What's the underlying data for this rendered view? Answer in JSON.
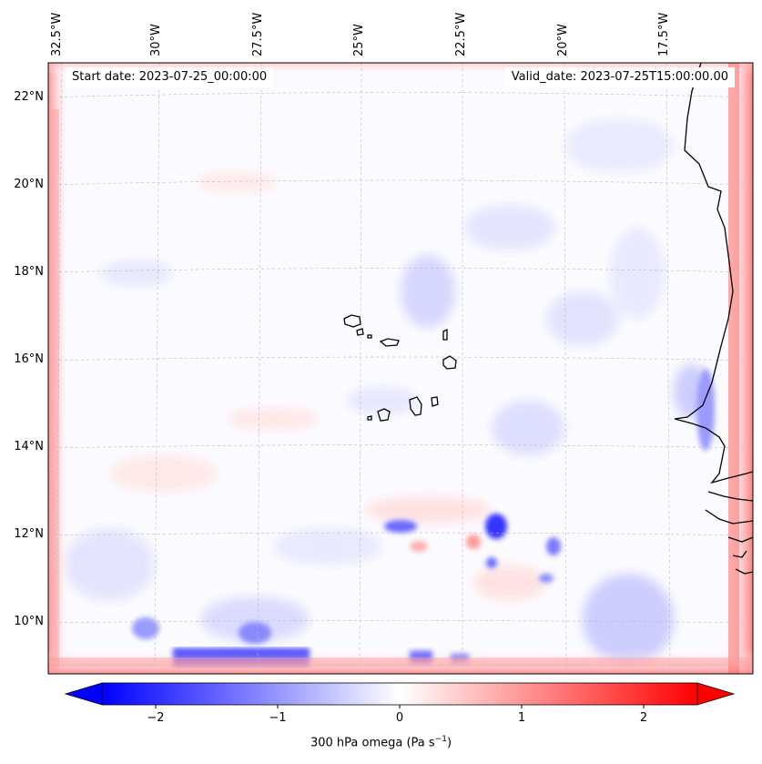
{
  "map": {
    "start_date": "Start date: 2023-07-25_00:00:00",
    "valid_date": "Valid_date: 2023-07-25T15:00:00.00",
    "lon_labels": [
      "32.5°W",
      "30°W",
      "27.5°W",
      "25°W",
      "22.5°W",
      "20°W",
      "17.5°W"
    ],
    "lat_labels": [
      "22°N",
      "20°N",
      "18°N",
      "16°N",
      "14°N",
      "12°N",
      "10°N"
    ],
    "gridlines": true,
    "field": "300 hPa omega",
    "colormap": "bwr"
  },
  "colorbar": {
    "ticks": [
      "−2",
      "−1",
      "0",
      "1",
      "2"
    ],
    "min": -2.7,
    "max": 2.7,
    "extend": "both",
    "label_main": "300 hPa omega (Pa s",
    "label_sup": "−1",
    "label_end": ")",
    "colors": {
      "negative": "#0000ff",
      "zero": "#ffffff",
      "positive": "#ff0000"
    }
  }
}
